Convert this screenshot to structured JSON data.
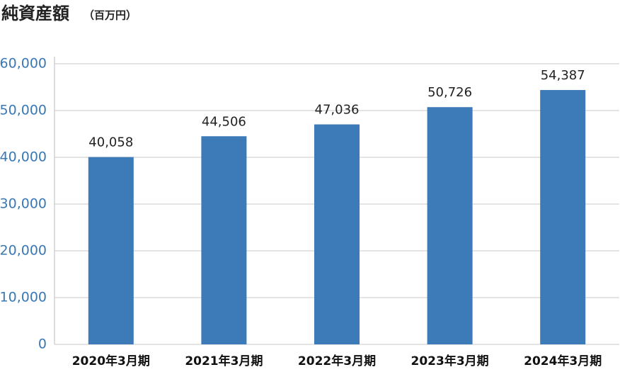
{
  "chart_data": {
    "type": "bar",
    "title": "純資産額",
    "subtitle": "（百万円）",
    "categories": [
      "2020年3月期",
      "2021年3月期",
      "2022年3月期",
      "2023年3月期",
      "2024年3月期"
    ],
    "values": [
      40058,
      44506,
      47036,
      50726,
      54387
    ],
    "value_labels": [
      "40,058",
      "44,506",
      "47,036",
      "50,726",
      "54,387"
    ],
    "color": "#3d7ab8",
    "ylim": [
      0,
      60000
    ],
    "yticks": [
      0,
      {
        "value": 10000,
        "label": "10,000"
      },
      {
        "value": 20000,
        "label": "20,000"
      },
      {
        "value": 30000,
        "label": "30,000"
      },
      {
        "value": 40000,
        "label": "40,000"
      },
      {
        "value": 50000,
        "label": "50,000"
      },
      {
        "value": 60000,
        "label": "60,000"
      }
    ],
    "grid": true
  }
}
